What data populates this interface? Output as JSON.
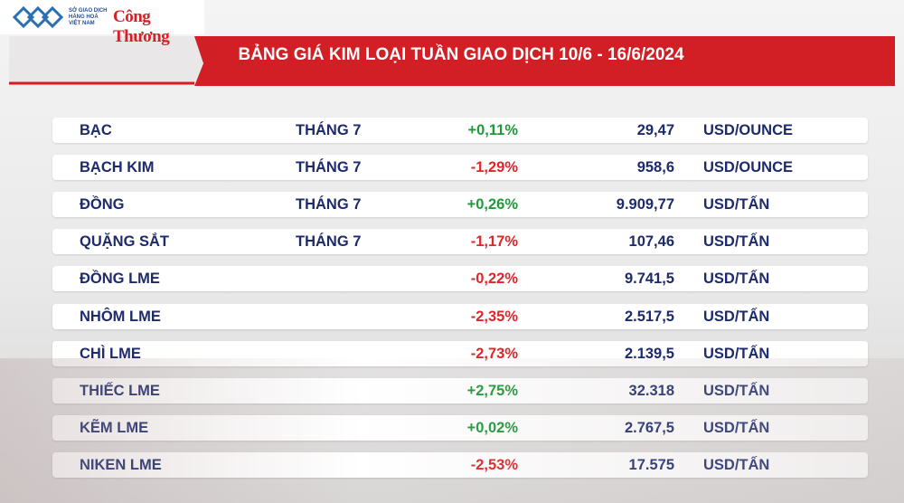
{
  "header": {
    "logo_lines": [
      "SỞ GIAO DỊCH",
      "HÀNG HOÁ",
      "VIỆT NAM"
    ],
    "brand": "Công Thương",
    "title": "BẢNG GIÁ KIM LOẠI TUẦN GIAO DỊCH 10/6 - 16/6/2024"
  },
  "table": {
    "rows": [
      {
        "name": "BẠC",
        "month": "THÁNG 7",
        "change": "+0,11%",
        "price": "29,47",
        "unit": "USD/OUNCE"
      },
      {
        "name": "BẠCH KIM",
        "month": "THÁNG 7",
        "change": "-1,29%",
        "price": "958,6",
        "unit": "USD/OUNCE"
      },
      {
        "name": "ĐỒNG",
        "month": "THÁNG 7",
        "change": "+0,26%",
        "price": "9.909,77",
        "unit": "USD/TẤN"
      },
      {
        "name": "QUẶNG SẮT",
        "month": "THÁNG 7",
        "change": "-1,17%",
        "price": "107,46",
        "unit": "USD/TẤN"
      },
      {
        "name": "ĐỒNG LME",
        "change": "-0,22%",
        "price": "9.741,5",
        "unit": "USD/TẤN"
      },
      {
        "name": "NHÔM LME",
        "change": "-2,35%",
        "price": "2.517,5",
        "unit": "USD/TẤN"
      },
      {
        "name": "CHÌ LME",
        "change": "-2,73%",
        "price": "2.139,5",
        "unit": "USD/TẤN"
      },
      {
        "name": "THIẾC LME",
        "change": "+2,75%",
        "price": "32.318",
        "unit": "USD/TẤN"
      },
      {
        "name": "KẼM LME",
        "change": "+0,02%",
        "price": "2.767,5",
        "unit": "USD/TẤN"
      },
      {
        "name": "NIKEN LME",
        "change": "-2,53%",
        "price": "17.575",
        "unit": "USD/TẤN"
      }
    ]
  }
}
